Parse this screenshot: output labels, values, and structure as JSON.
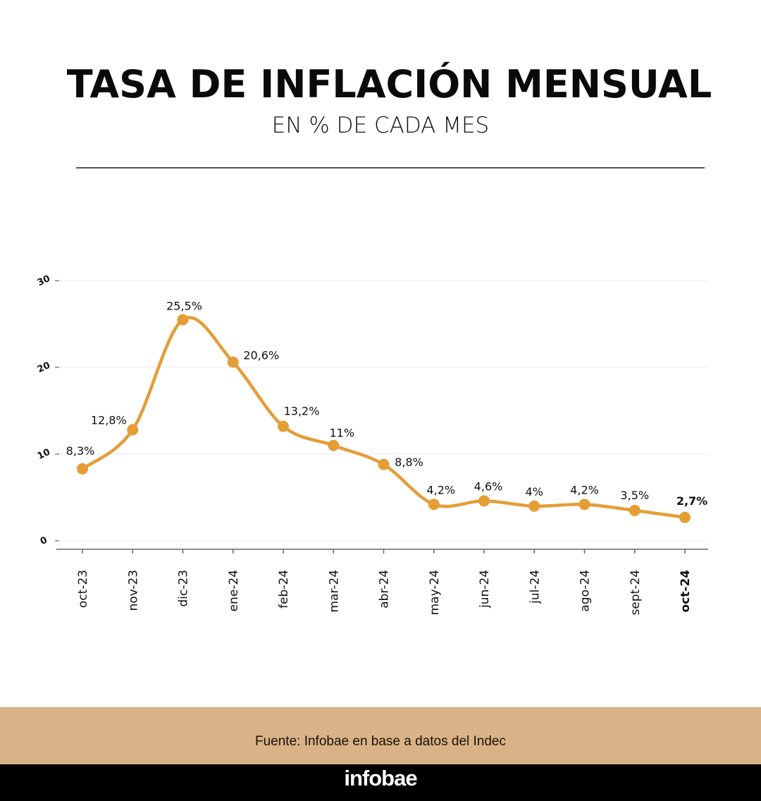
{
  "header": {
    "title": "TASA DE INFLACIÓN MENSUAL",
    "subtitle": "EN % DE CADA MES"
  },
  "footer": {
    "source": "Fuente: Infobae en base a datos del Indec",
    "brand": "infobae"
  },
  "colors": {
    "line": "#e59d35",
    "source_band": "#d9b287",
    "brand_band": "#000000"
  },
  "chart_data": {
    "type": "line",
    "title": "TASA DE INFLACIÓN MENSUAL",
    "subtitle": "EN % DE CADA MES",
    "xlabel": "",
    "ylabel": "",
    "categories": [
      "oct-23",
      "nov-23",
      "dic-23",
      "ene-24",
      "feb-24",
      "mar-24",
      "abr-24",
      "may-24",
      "jun-24",
      "jul-24",
      "ago-24",
      "sept-24",
      "oct-24"
    ],
    "series": [
      {
        "name": "Inflación mensual",
        "values": [
          8.3,
          12.8,
          25.5,
          20.6,
          13.2,
          11,
          8.8,
          4.2,
          4.6,
          4,
          4.2,
          3.5,
          2.7
        ],
        "labels": [
          "8,3%",
          "12,8%",
          "25,5%",
          "20,6%",
          "13,2%",
          "11%",
          "8,8%",
          "4,2%",
          "4,6%",
          "4%",
          "4,2%",
          "3,5%",
          "2,7%"
        ]
      }
    ],
    "highlight_index": 12,
    "ylim": [
      0,
      30
    ],
    "yticks": [
      0,
      10,
      20,
      30
    ],
    "ytick_labels": [
      "0",
      "10",
      "20",
      "30"
    ],
    "grid": true,
    "smooth": true,
    "legend": "none",
    "source": "Fuente: Infobae en base a datos del Indec"
  }
}
